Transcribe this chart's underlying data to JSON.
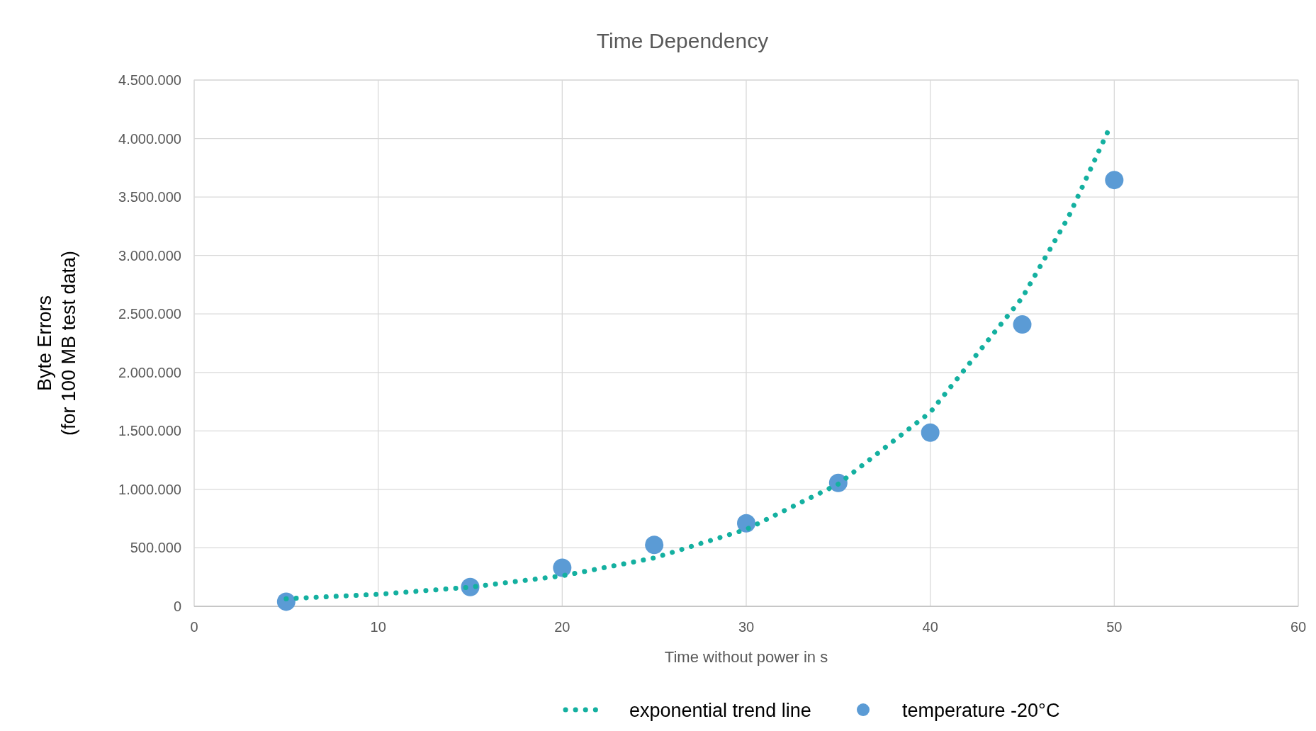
{
  "chart_data": {
    "type": "scatter",
    "title": "Time Dependency",
    "xlabel": "Time without power in s",
    "ylabel": "Byte Errors\n(for 100 MB test data)",
    "xlim": [
      0,
      60
    ],
    "xticks": [
      0,
      10,
      20,
      30,
      40,
      50,
      60
    ],
    "ylim": [
      0,
      4500000
    ],
    "yticks": [
      0,
      {
        "value": 500000,
        "label": "500.000"
      },
      {
        "value": 1000000,
        "label": "1.000.000"
      },
      {
        "value": 1500000,
        "label": "1.500.000"
      },
      {
        "value": 2000000,
        "label": "2.000.000"
      },
      {
        "value": 2500000,
        "label": "2.500.000"
      },
      {
        "value": 3000000,
        "label": "3.000.000"
      },
      {
        "value": 3500000,
        "label": "3.500.000"
      },
      {
        "value": 4000000,
        "label": "4.000.000"
      },
      {
        "value": 4500000,
        "label": "4.500.000"
      }
    ],
    "grid": true,
    "legend": "bottom",
    "series": [
      {
        "name": "exponential trend line",
        "type": "line",
        "line_style": "dotted",
        "color": "#14b0a0",
        "x": [
          5,
          10,
          15,
          20,
          25,
          30,
          35,
          40,
          45,
          47.5,
          49.7
        ],
        "values": [
          65000,
          103000,
          164000,
          261000,
          414000,
          658000,
          1045000,
          1659000,
          2639000,
          3326000,
          4076000
        ]
      },
      {
        "name": "temperature -20°C",
        "marker": "circle",
        "color": "#5b9bd5",
        "x": [
          5,
          15,
          20,
          25,
          30,
          35,
          40,
          45,
          50
        ],
        "values": [
          40000,
          165000,
          330000,
          525000,
          710000,
          1055000,
          1485000,
          2410000,
          3645000
        ]
      }
    ]
  }
}
